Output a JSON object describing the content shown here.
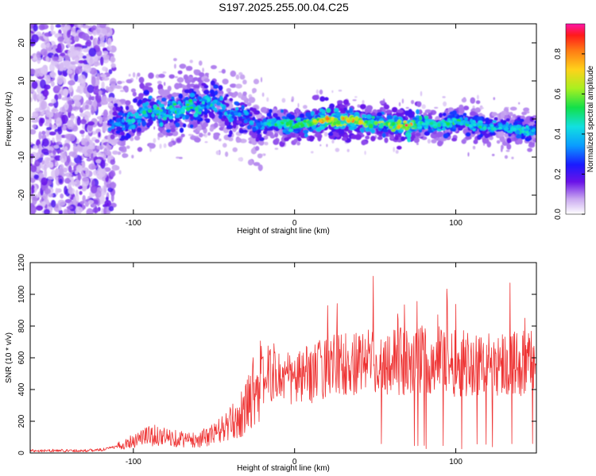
{
  "title": "S197.2025.255.00.04.C25",
  "chart_data": [
    {
      "type": "heatmap",
      "xlabel": "Height of straight line (km)",
      "ylabel": "Frequency (Hz)",
      "xlim": [
        -164,
        150
      ],
      "ylim": [
        -25,
        25
      ],
      "xticks": [
        -100,
        0,
        100
      ],
      "yticks": [
        -20,
        -10,
        0,
        10,
        20
      ],
      "colorbar": {
        "label": "Normalized spectral amplitude",
        "range": [
          0,
          0.95
        ],
        "ticks": [
          0.0,
          0.2,
          0.4,
          0.6,
          0.8
        ]
      },
      "ridge": {
        "x": [
          -112,
          -105,
          -100,
          -95,
          -90,
          -85,
          -80,
          -75,
          -70,
          -65,
          -60,
          -55,
          -50,
          -45,
          -40,
          -35,
          -30,
          -25,
          -20,
          -15,
          -10,
          -5,
          0,
          5,
          10,
          15,
          20,
          25,
          30,
          35,
          40,
          45,
          50,
          55,
          60,
          65,
          70,
          75,
          80,
          85,
          90,
          95,
          100,
          105,
          110,
          115,
          120,
          125,
          130,
          135,
          140,
          145,
          150
        ],
        "freq": [
          -1.5,
          -1,
          0,
          1,
          3,
          2,
          1,
          3,
          2,
          4,
          2,
          5,
          4,
          3,
          1,
          2,
          1,
          -2,
          -1.5,
          -1,
          -1,
          -1.5,
          -1.5,
          -1.2,
          -1,
          -0.8,
          0,
          -0.5,
          -0.3,
          -0.5,
          -0.8,
          -1,
          -1,
          -1.2,
          -1.5,
          -1.8,
          -2,
          -1.5,
          -1,
          -1.5,
          -1.5,
          -1.2,
          -0.5,
          -1,
          -1.5,
          -1.8,
          -2,
          -2.2,
          -2.2,
          -2.5,
          -2.5,
          -3,
          -3
        ],
        "amp": [
          0.3,
          0.4,
          0.45,
          0.5,
          0.45,
          0.5,
          0.45,
          0.5,
          0.45,
          0.5,
          0.45,
          0.4,
          0.45,
          0.4,
          0.4,
          0.35,
          0.35,
          0.35,
          0.4,
          0.45,
          0.5,
          0.55,
          0.6,
          0.6,
          0.65,
          0.7,
          0.85,
          0.75,
          0.7,
          0.75,
          0.7,
          0.65,
          0.6,
          0.6,
          0.65,
          0.7,
          0.85,
          0.6,
          0.5,
          0.5,
          0.45,
          0.5,
          0.5,
          0.45,
          0.45,
          0.45,
          0.45,
          0.4,
          0.4,
          0.45,
          0.5,
          0.45,
          0.4
        ]
      }
    },
    {
      "type": "line",
      "xlabel": "Height of straight line (km)",
      "ylabel": "SNR (10 * v/v)",
      "xlim": [
        -164,
        150
      ],
      "ylim": [
        0,
        1200
      ],
      "xticks": [
        -100,
        0,
        100
      ],
      "yticks": [
        0,
        200,
        400,
        600,
        800,
        1000,
        1200
      ],
      "series": [
        {
          "name": "SNR",
          "color": "#ee3333",
          "x": [
            -164,
            -150,
            -140,
            -130,
            -120,
            -115,
            -110,
            -105,
            -100,
            -95,
            -90,
            -85,
            -80,
            -75,
            -70,
            -65,
            -60,
            -55,
            -50,
            -45,
            -40,
            -35,
            -30,
            -28,
            -26,
            -24,
            -22,
            -20,
            -18,
            -16,
            -14,
            -12,
            -10,
            -5,
            0,
            5,
            10,
            15,
            20,
            25,
            30,
            35,
            40,
            45,
            50,
            55,
            60,
            65,
            70,
            75,
            80,
            85,
            90,
            95,
            100,
            105,
            110,
            115,
            120,
            125,
            130,
            135,
            140,
            145,
            150
          ],
          "y": [
            15,
            15,
            15,
            15,
            20,
            30,
            40,
            60,
            80,
            100,
            110,
            110,
            100,
            95,
            90,
            80,
            85,
            100,
            120,
            150,
            180,
            220,
            280,
            350,
            400,
            430,
            440,
            460,
            480,
            500,
            510,
            500,
            480,
            470,
            460,
            480,
            500,
            520,
            540,
            560,
            560,
            580,
            580,
            590,
            580,
            560,
            600,
            580,
            560,
            560,
            600,
            580,
            600,
            590,
            560,
            580,
            560,
            560,
            560,
            580,
            560,
            580,
            560,
            560,
            580
          ]
        }
      ]
    }
  ]
}
